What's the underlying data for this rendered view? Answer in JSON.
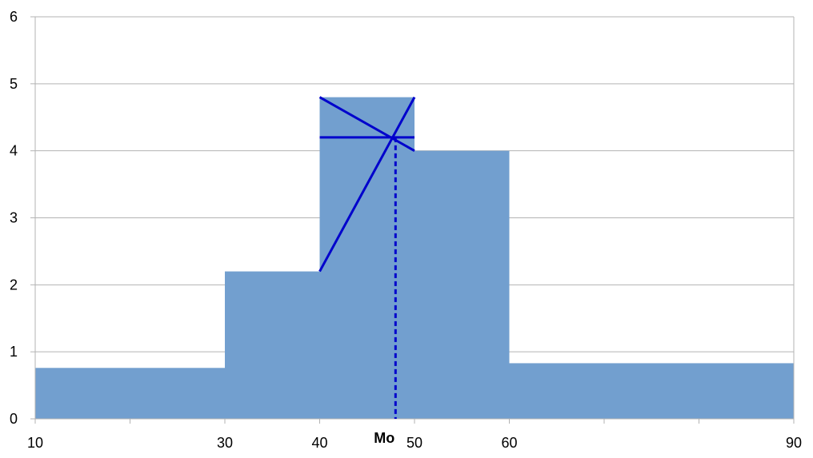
{
  "chart_data": {
    "type": "bar",
    "subtype": "histogram",
    "bins": [
      {
        "x0": 10,
        "x1": 30,
        "value": 0.76
      },
      {
        "x0": 30,
        "x1": 40,
        "value": 2.2
      },
      {
        "x0": 40,
        "x1": 50,
        "value": 4.8
      },
      {
        "x0": 50,
        "x1": 60,
        "value": 4.0
      },
      {
        "x0": 60,
        "x1": 90,
        "value": 0.83
      }
    ],
    "xlim": [
      10,
      90
    ],
    "ylim": [
      0,
      6
    ],
    "x_ticks": [
      10,
      30,
      40,
      50,
      60,
      90
    ],
    "y_ticks": [
      0,
      1,
      2,
      3,
      4,
      5,
      6
    ],
    "grid": {
      "horizontal": true,
      "vertical": false
    },
    "title": "",
    "xlabel": "",
    "ylabel": "",
    "mode_construction": {
      "label": "Mo",
      "mode_x": 48.0,
      "mode_y": 4.2,
      "lines": [
        {
          "from": [
            40,
            4.8
          ],
          "to": [
            50,
            4.0
          ]
        },
        {
          "from": [
            40,
            2.2
          ],
          "to": [
            50,
            4.8
          ]
        },
        {
          "from": [
            40,
            4.2
          ],
          "to": [
            50,
            4.2
          ]
        }
      ]
    },
    "colors": {
      "bar_fill": "#729fcf",
      "construction": "#0000cc",
      "grid": "#b3b3b3",
      "axis": "#b3b3b3"
    }
  }
}
